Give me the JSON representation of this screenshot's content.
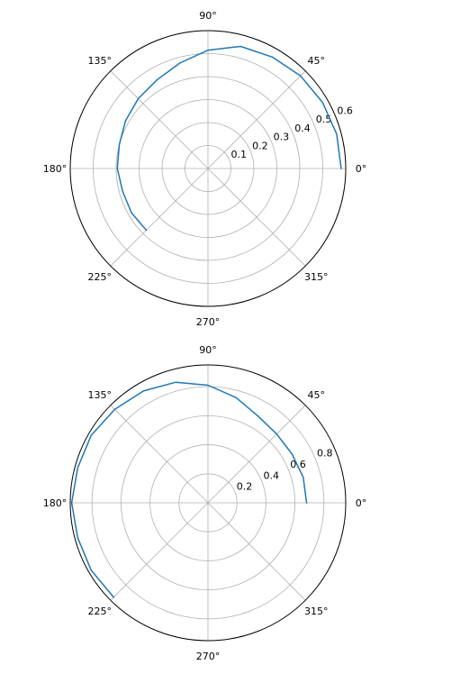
{
  "chart_data": [
    {
      "type": "line",
      "projection": "polar",
      "angle_ticks": [
        "0°",
        "45°",
        "90°",
        "135°",
        "180°",
        "225°",
        "270°",
        "315°"
      ],
      "radial_ticks": [
        "0.1",
        "0.2",
        "0.3",
        "0.4",
        "0.5",
        "0.6"
      ],
      "rlim": [
        0,
        0.6
      ],
      "grid": true,
      "series": [
        {
          "color": "#1f77b4",
          "theta_deg": [
            0,
            15,
            30,
            45,
            60,
            75,
            90,
            105,
            120,
            135,
            150,
            165,
            180,
            195,
            210,
            225
          ],
          "r": [
            0.58,
            0.58,
            0.576,
            0.57,
            0.56,
            0.55,
            0.515,
            0.475,
            0.445,
            0.43,
            0.415,
            0.4,
            0.395,
            0.385,
            0.385,
            0.38
          ]
        }
      ]
    },
    {
      "type": "line",
      "projection": "polar",
      "angle_ticks": [
        "0°",
        "45°",
        "90°",
        "135°",
        "180°",
        "225°",
        "270°",
        "315°"
      ],
      "radial_ticks": [
        "0.2",
        "0.4",
        "0.6",
        "0.8"
      ],
      "rlim": [
        0,
        0.95
      ],
      "grid": true,
      "series": [
        {
          "color": "#1f77b4",
          "theta_deg": [
            0,
            15,
            30,
            45,
            60,
            75,
            90,
            105,
            120,
            135,
            150,
            165,
            180,
            195,
            210,
            225
          ],
          "r": [
            0.68,
            0.68,
            0.67,
            0.67,
            0.69,
            0.75,
            0.81,
            0.86,
            0.89,
            0.91,
            0.93,
            0.93,
            0.94,
            0.93,
            0.93,
            0.92
          ]
        }
      ]
    }
  ]
}
